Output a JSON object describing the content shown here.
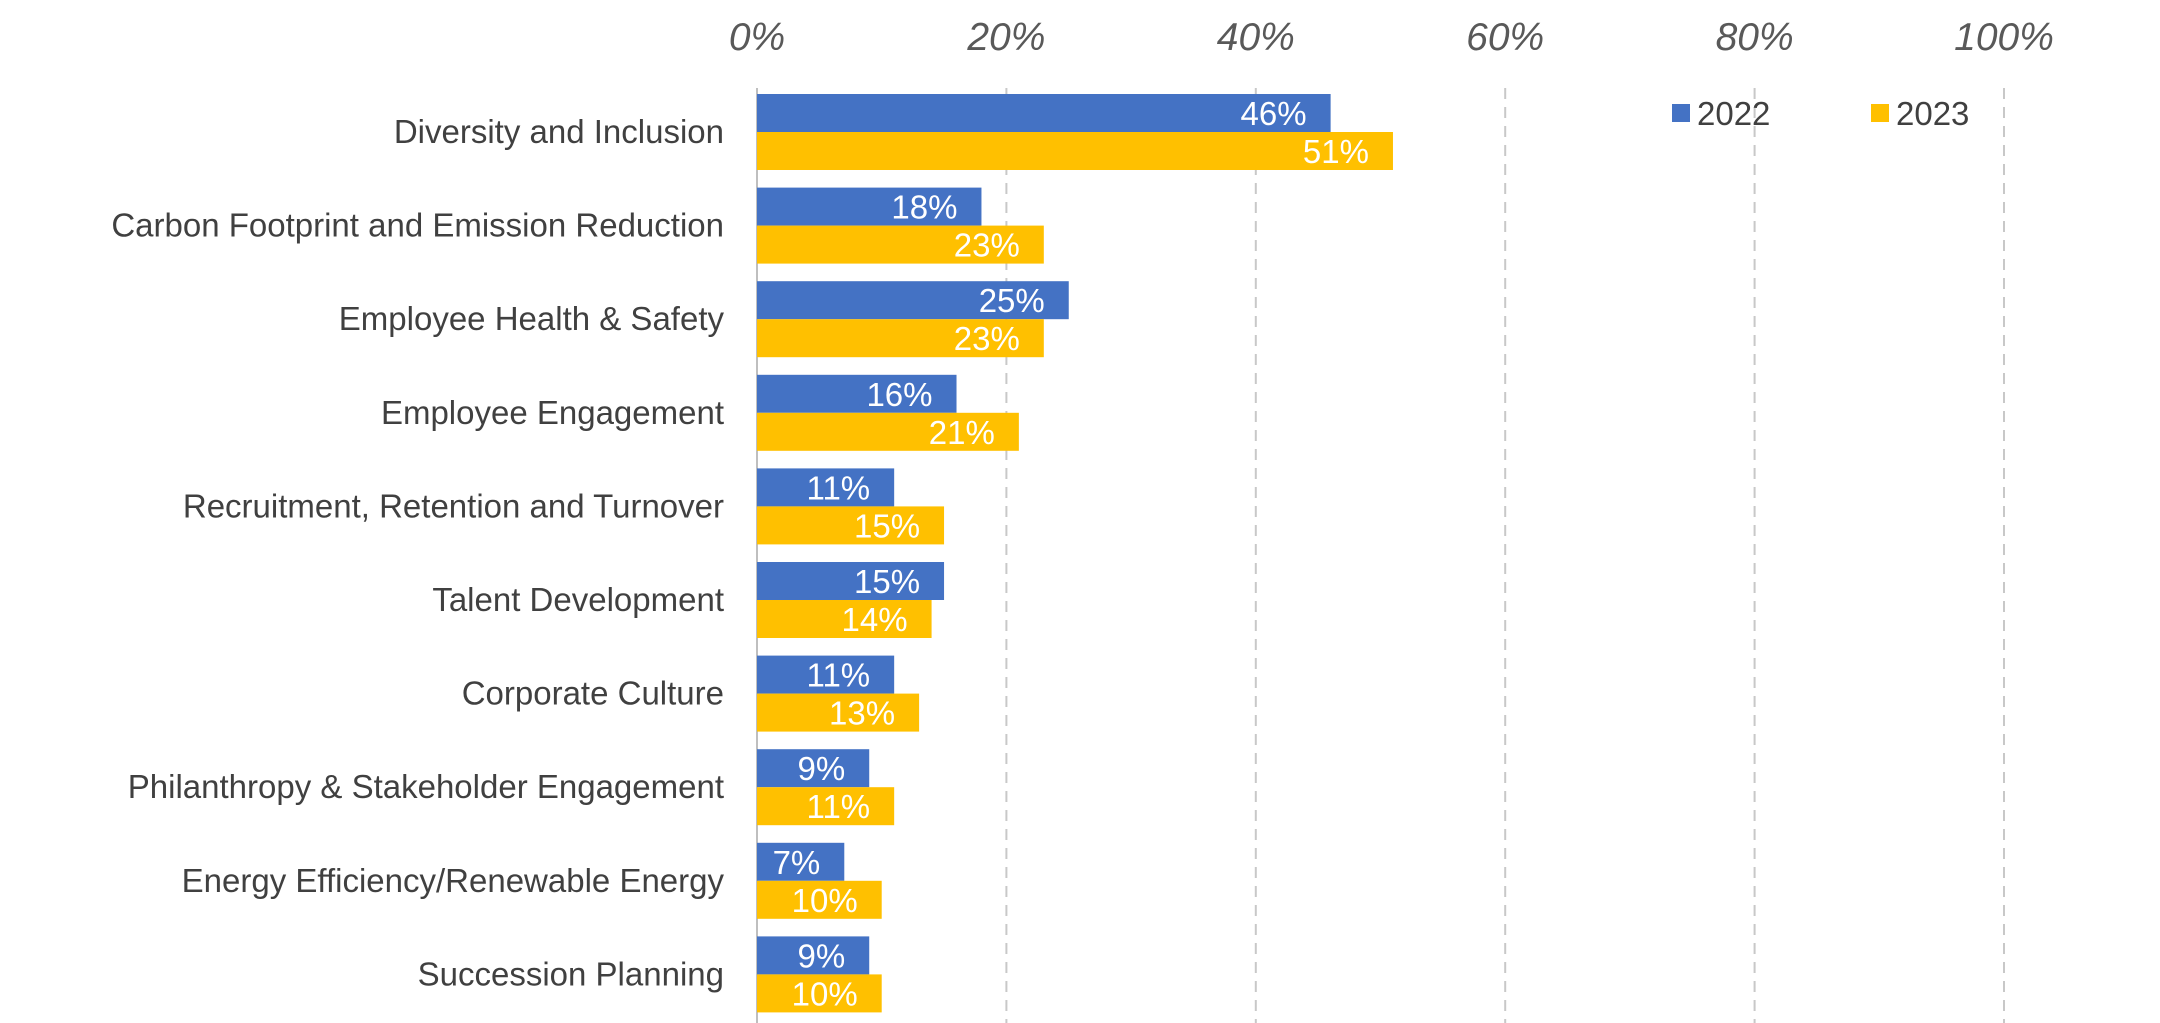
{
  "chart_data": {
    "type": "bar",
    "orientation": "horizontal",
    "categories": [
      "Diversity and Inclusion",
      "Carbon Footprint and Emission Reduction",
      "Employee Health & Safety",
      "Employee Engagement",
      "Recruitment, Retention and Turnover",
      "Talent Development",
      "Corporate Culture",
      "Philanthropy & Stakeholder Engagement",
      "Energy Efficiency/Renewable Energy",
      "Succession Planning"
    ],
    "series": [
      {
        "name": "2022",
        "color": "#4472C4",
        "values": [
          46,
          18,
          25,
          16,
          11,
          15,
          11,
          9,
          7,
          9
        ],
        "labels": [
          "46%",
          "18%",
          "25%",
          "16%",
          "11%",
          "15%",
          "11%",
          "9%",
          "7%",
          "9%"
        ]
      },
      {
        "name": "2023",
        "color": "#FFC000",
        "values": [
          51,
          23,
          23,
          21,
          15,
          14,
          13,
          11,
          10,
          10
        ],
        "labels": [
          "51%",
          "23%",
          "23%",
          "21%",
          "15%",
          "14%",
          "13%",
          "11%",
          "10%",
          "10%"
        ]
      }
    ],
    "xlim": [
      0,
      100
    ],
    "xticks": [
      0,
      20,
      40,
      60,
      80,
      100
    ],
    "xtick_labels": [
      "0%",
      "20%",
      "40%",
      "60%",
      "80%",
      "100%"
    ],
    "x_axis_position": "top",
    "grid": true,
    "legend_position": "top-right",
    "title": "",
    "xlabel": "",
    "ylabel": ""
  }
}
